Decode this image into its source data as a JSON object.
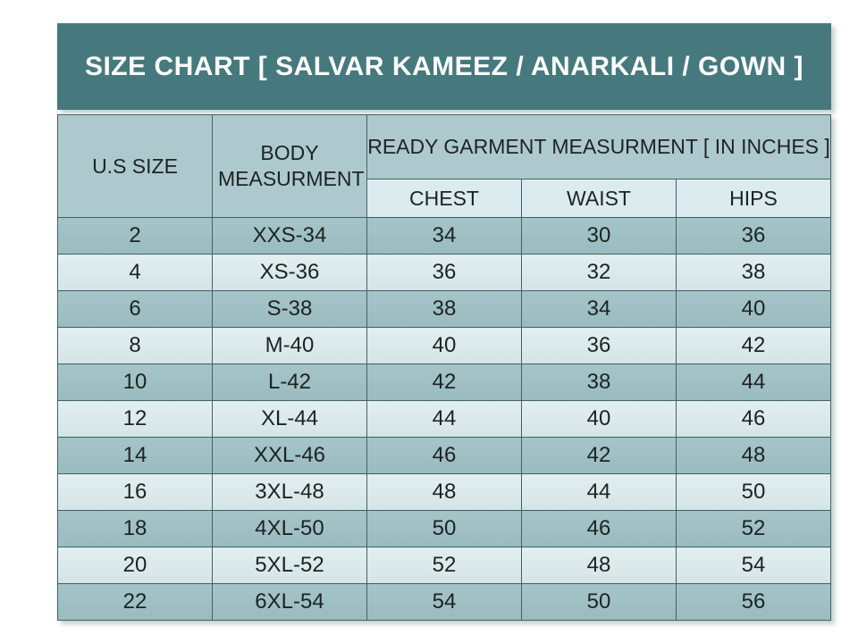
{
  "title": "SIZE CHART [ SALVAR KAMEEZ / ANARKALI / GOWN ]",
  "table": {
    "header": {
      "us_size": "U.S SIZE",
      "body_measurement": "BODY MEASURMENT",
      "garment_group": "READY GARMENT MEASURMENT [ IN INCHES ]",
      "chest": "CHEST",
      "waist": "WAIST",
      "hips": "HIPS"
    }
  },
  "chart_data": {
    "type": "table",
    "title": "SIZE CHART [ SALVAR KAMEEZ / ANARKALI / GOWN ]",
    "columns": [
      "U.S SIZE",
      "BODY MEASURMENT",
      "CHEST",
      "WAIST",
      "HIPS"
    ],
    "column_group": {
      "label": "READY GARMENT MEASURMENT [ IN INCHES ]",
      "spans": [
        "CHEST",
        "WAIST",
        "HIPS"
      ]
    },
    "rows": [
      [
        "2",
        "XXS-34",
        "34",
        "30",
        "36"
      ],
      [
        "4",
        "XS-36",
        "36",
        "32",
        "38"
      ],
      [
        "6",
        "S-38",
        "38",
        "34",
        "40"
      ],
      [
        "8",
        "M-40",
        "40",
        "36",
        "42"
      ],
      [
        "10",
        "L-42",
        "42",
        "38",
        "44"
      ],
      [
        "12",
        "XL-44",
        "44",
        "40",
        "46"
      ],
      [
        "14",
        "XXL-46",
        "46",
        "42",
        "48"
      ],
      [
        "16",
        "3XL-48",
        "48",
        "44",
        "50"
      ],
      [
        "18",
        "4XL-50",
        "50",
        "46",
        "52"
      ],
      [
        "20",
        "5XL-52",
        "52",
        "48",
        "54"
      ],
      [
        "22",
        "6XL-54",
        "54",
        "50",
        "56"
      ]
    ]
  },
  "colors": {
    "banner_bg": "#46797e",
    "banner_text": "#fdfdfd",
    "header_bg": "#aec9cd",
    "subheader_bg": "#dcebed",
    "row_dark_bg": "#9fc1c5",
    "row_light_bg": "#d9e9eb",
    "border": "#3f6368",
    "text": "#1c2324",
    "page_bg": "#ffffff"
  }
}
